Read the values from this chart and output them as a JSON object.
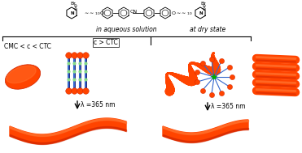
{
  "background_color": "#ffffff",
  "text_aqueous": "in aqueous solution",
  "text_dry": "at dry state",
  "text_cmc_ctc": "CMC < c < CTC",
  "text_c_ctc": "c > CTC",
  "text_lambda1": "λ =365 nm",
  "text_lambda2": "λ =365 nm",
  "orange": "#FF4400",
  "orange_dark": "#CC2200",
  "orange_light": "#FF7733",
  "blue": "#3366CC",
  "blue_light": "#6699FF",
  "dark_navy": "#111166",
  "green": "#00AA00",
  "black": "#111111",
  "figsize": [
    3.71,
    1.89
  ],
  "dpi": 100
}
